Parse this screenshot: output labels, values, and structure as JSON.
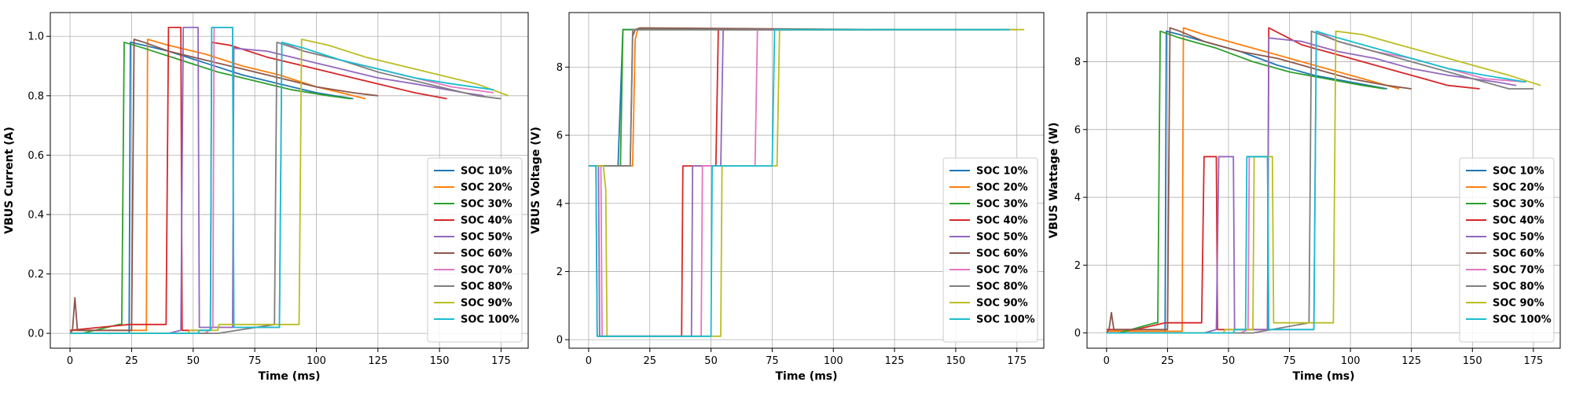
{
  "chart_data": [
    {
      "type": "line",
      "xlabel": "Time (ms)",
      "ylabel": "VBUS Current (A)",
      "xlim": [
        -8,
        186
      ],
      "ylim": [
        -0.05,
        1.08
      ],
      "xticks": [
        0,
        25,
        50,
        75,
        100,
        125,
        150,
        175
      ],
      "yticks": [
        0.0,
        0.2,
        0.4,
        0.6,
        0.8,
        1.0
      ],
      "ytick_labels": [
        "0.0",
        "0.2",
        "0.4",
        "0.6",
        "0.8",
        "1.0"
      ],
      "grid": true,
      "legend_position": "lower-right",
      "series": [
        {
          "name": "SOC 10%",
          "x": [
            0,
            24,
            24.5,
            30,
            40,
            55,
            70,
            85,
            100,
            115
          ],
          "y": [
            0.0,
            0.0,
            0.98,
            0.97,
            0.95,
            0.91,
            0.87,
            0.84,
            0.81,
            0.79
          ]
        },
        {
          "name": "SOC 20%",
          "x": [
            0,
            31,
            31.5,
            40,
            55,
            70,
            85,
            100,
            115,
            120
          ],
          "y": [
            0.01,
            0.01,
            0.99,
            0.97,
            0.94,
            0.9,
            0.87,
            0.83,
            0.8,
            0.79
          ]
        },
        {
          "name": "SOC 30%",
          "x": [
            0,
            5,
            20,
            21,
            22,
            30,
            45,
            60,
            75,
            90,
            105,
            114
          ],
          "y": [
            0.0,
            0.0,
            0.03,
            0.03,
            0.98,
            0.96,
            0.92,
            0.88,
            0.85,
            0.82,
            0.8,
            0.79
          ]
        },
        {
          "name": "SOC 40%",
          "x": [
            0,
            12,
            24,
            39,
            40,
            45,
            45.5,
            57,
            57.5,
            65,
            80,
            95,
            110,
            125,
            140,
            153
          ],
          "y": [
            0.01,
            0.02,
            0.03,
            0.03,
            1.03,
            1.03,
            0.01,
            0.01,
            0.98,
            0.97,
            0.93,
            0.9,
            0.87,
            0.84,
            0.81,
            0.79
          ]
        },
        {
          "name": "SOC 50%",
          "x": [
            0,
            40,
            45,
            46,
            52,
            52.5,
            66,
            66.5,
            80,
            95,
            110,
            125,
            140,
            160,
            168
          ],
          "y": [
            0.0,
            0.0,
            0.01,
            1.03,
            1.03,
            0.02,
            0.02,
            0.96,
            0.95,
            0.92,
            0.89,
            0.86,
            0.84,
            0.81,
            0.8
          ]
        },
        {
          "name": "SOC 60%",
          "x": [
            0,
            1,
            2,
            3,
            25,
            26,
            30,
            40,
            55,
            70,
            85,
            100,
            115,
            125
          ],
          "y": [
            0.0,
            0.01,
            0.12,
            0.01,
            0.01,
            0.99,
            0.98,
            0.95,
            0.92,
            0.89,
            0.86,
            0.83,
            0.81,
            0.8
          ]
        },
        {
          "name": "SOC 70%",
          "x": [
            0,
            55,
            58,
            58.5,
            66,
            66.5,
            85,
            86,
            95,
            110,
            125,
            140,
            155,
            172
          ],
          "y": [
            0.0,
            0.0,
            0.02,
            1.03,
            1.03,
            0.02,
            0.02,
            0.98,
            0.95,
            0.92,
            0.89,
            0.86,
            0.83,
            0.81
          ]
        },
        {
          "name": "SOC 80%",
          "x": [
            0,
            60,
            83,
            84,
            95,
            110,
            125,
            140,
            155,
            165,
            175
          ],
          "y": [
            0.0,
            0.0,
            0.03,
            0.98,
            0.95,
            0.92,
            0.88,
            0.85,
            0.82,
            0.8,
            0.79
          ]
        },
        {
          "name": "SOC 90%",
          "x": [
            0,
            48,
            48.5,
            60,
            60.5,
            68,
            68.5,
            93,
            94,
            105,
            120,
            135,
            150,
            165,
            178
          ],
          "y": [
            0.0,
            0.0,
            0.01,
            0.01,
            0.03,
            0.03,
            0.03,
            0.03,
            0.99,
            0.97,
            0.93,
            0.9,
            0.87,
            0.84,
            0.8
          ]
        },
        {
          "name": "SOC 100%",
          "x": [
            0,
            52,
            52.5,
            57,
            57.5,
            66,
            66.5,
            85,
            86,
            95,
            110,
            125,
            140,
            155,
            172
          ],
          "y": [
            0.0,
            0.0,
            0.01,
            0.01,
            1.03,
            1.03,
            0.02,
            0.02,
            0.98,
            0.96,
            0.92,
            0.89,
            0.86,
            0.84,
            0.82
          ]
        }
      ]
    },
    {
      "type": "line",
      "xlabel": "Time (ms)",
      "ylabel": "VBUS Voltage (V)",
      "xlim": [
        -8,
        186
      ],
      "ylim": [
        -0.25,
        9.6
      ],
      "xticks": [
        0,
        25,
        50,
        75,
        100,
        125,
        150,
        175
      ],
      "yticks": [
        0,
        2,
        4,
        6,
        8
      ],
      "ytick_labels": [
        "0",
        "2",
        "4",
        "6",
        "8"
      ],
      "grid": true,
      "legend_position": "lower-right",
      "series": [
        {
          "name": "SOC 10%",
          "x": [
            0,
            12,
            14,
            115
          ],
          "y": [
            5.1,
            5.1,
            9.1,
            9.1
          ]
        },
        {
          "name": "SOC 20%",
          "x": [
            0,
            18,
            19,
            20,
            120
          ],
          "y": [
            5.1,
            5.1,
            8.8,
            9.1,
            9.1
          ]
        },
        {
          "name": "SOC 30%",
          "x": [
            0,
            13,
            14,
            115
          ],
          "y": [
            5.1,
            5.1,
            9.1,
            9.1
          ]
        },
        {
          "name": "SOC 40%",
          "x": [
            0,
            3,
            3.5,
            38,
            38.5,
            52,
            53,
            153
          ],
          "y": [
            5.1,
            5.1,
            0.1,
            0.1,
            5.1,
            5.1,
            9.1,
            9.1
          ]
        },
        {
          "name": "SOC 50%",
          "x": [
            0,
            4,
            4.5,
            42,
            42.5,
            54,
            55,
            168
          ],
          "y": [
            5.1,
            5.1,
            0.1,
            0.1,
            5.1,
            5.1,
            9.1,
            9.1
          ]
        },
        {
          "name": "SOC 60%",
          "x": [
            0,
            17,
            18,
            19,
            21,
            125
          ],
          "y": [
            5.1,
            5.1,
            8.9,
            9.1,
            9.15,
            9.1
          ]
        },
        {
          "name": "SOC 70%",
          "x": [
            0,
            5,
            5.5,
            46,
            46.5,
            68,
            69,
            172
          ],
          "y": [
            5.1,
            5.1,
            0.1,
            0.1,
            5.1,
            5.1,
            9.1,
            9.1
          ]
        },
        {
          "name": "SOC 80%",
          "x": [
            0,
            17,
            18,
            175
          ],
          "y": [
            5.1,
            5.1,
            9.1,
            9.1
          ]
        },
        {
          "name": "SOC 90%",
          "x": [
            0,
            6,
            7,
            7.5,
            54,
            54.5,
            77,
            78,
            178
          ],
          "y": [
            5.1,
            5.1,
            4.4,
            0.1,
            0.1,
            5.1,
            5.1,
            9.1,
            9.1
          ]
        },
        {
          "name": "SOC 100%",
          "x": [
            0,
            3,
            3.5,
            50,
            50.5,
            75,
            76,
            172
          ],
          "y": [
            5.1,
            5.1,
            0.1,
            0.1,
            5.1,
            5.1,
            9.1,
            9.1
          ]
        }
      ]
    },
    {
      "type": "line",
      "xlabel": "Time (ms)",
      "ylabel": "VBUS Wattage (W)",
      "xlim": [
        -8,
        186
      ],
      "ylim": [
        -0.45,
        9.45
      ],
      "xticks": [
        0,
        25,
        50,
        75,
        100,
        125,
        150,
        175
      ],
      "yticks": [
        0,
        2,
        4,
        6,
        8
      ],
      "ytick_labels": [
        "0",
        "2",
        "4",
        "6",
        "8"
      ],
      "grid": true,
      "legend_position": "lower-right",
      "series": [
        {
          "name": "SOC 10%",
          "x": [
            0,
            24,
            24.5,
            30,
            40,
            55,
            70,
            85,
            100,
            115
          ],
          "y": [
            0.0,
            0.0,
            8.9,
            8.8,
            8.6,
            8.3,
            7.9,
            7.6,
            7.4,
            7.2
          ]
        },
        {
          "name": "SOC 20%",
          "x": [
            0,
            31,
            31.5,
            40,
            55,
            70,
            85,
            100,
            115,
            120
          ],
          "y": [
            0.05,
            0.05,
            9.0,
            8.8,
            8.5,
            8.2,
            7.9,
            7.6,
            7.3,
            7.2
          ]
        },
        {
          "name": "SOC 30%",
          "x": [
            0,
            5,
            20,
            21,
            22,
            30,
            45,
            60,
            75,
            90,
            105,
            114
          ],
          "y": [
            0.0,
            0.0,
            0.3,
            0.3,
            8.9,
            8.7,
            8.4,
            8.0,
            7.7,
            7.5,
            7.3,
            7.2
          ]
        },
        {
          "name": "SOC 40%",
          "x": [
            0,
            12,
            24,
            39,
            40,
            45,
            45.5,
            66,
            66.5,
            80,
            95,
            110,
            125,
            140,
            153
          ],
          "y": [
            0.1,
            0.1,
            0.3,
            0.3,
            5.2,
            5.2,
            0.1,
            0.1,
            9.0,
            8.5,
            8.2,
            7.9,
            7.6,
            7.3,
            7.2
          ]
        },
        {
          "name": "SOC 50%",
          "x": [
            0,
            40,
            45,
            46,
            52,
            52.5,
            66,
            66.5,
            80,
            95,
            110,
            125,
            140,
            160,
            168
          ],
          "y": [
            0.0,
            0.0,
            0.1,
            5.2,
            5.2,
            0.1,
            0.1,
            8.7,
            8.6,
            8.3,
            8.1,
            7.8,
            7.6,
            7.4,
            7.3
          ]
        },
        {
          "name": "SOC 60%",
          "x": [
            0,
            1,
            2,
            3,
            25,
            26,
            30,
            40,
            55,
            70,
            85,
            100,
            115,
            125
          ],
          "y": [
            0.0,
            0.1,
            0.6,
            0.1,
            0.1,
            9.0,
            8.9,
            8.6,
            8.3,
            8.1,
            7.8,
            7.5,
            7.3,
            7.2
          ]
        },
        {
          "name": "SOC 70%",
          "x": [
            0,
            55,
            58,
            58.5,
            66,
            66.5,
            85,
            86,
            95,
            110,
            125,
            140,
            155,
            172
          ],
          "y": [
            0.0,
            0.0,
            0.1,
            5.2,
            5.2,
            0.1,
            0.1,
            8.9,
            8.6,
            8.3,
            8.1,
            7.8,
            7.5,
            7.4
          ]
        },
        {
          "name": "SOC 80%",
          "x": [
            0,
            60,
            83,
            84,
            95,
            110,
            125,
            140,
            155,
            165,
            175
          ],
          "y": [
            0.0,
            0.0,
            0.3,
            8.9,
            8.6,
            8.3,
            8.0,
            7.7,
            7.4,
            7.2,
            7.2
          ]
        },
        {
          "name": "SOC 90%",
          "x": [
            0,
            48,
            48.5,
            60,
            60.5,
            68,
            68.5,
            93,
            94,
            105,
            120,
            135,
            150,
            165,
            178
          ],
          "y": [
            0.0,
            0.0,
            0.1,
            0.1,
            5.2,
            5.2,
            0.3,
            0.3,
            8.9,
            8.8,
            8.5,
            8.2,
            7.9,
            7.6,
            7.3
          ]
        },
        {
          "name": "SOC 100%",
          "x": [
            0,
            52,
            52.5,
            57,
            57.5,
            66,
            66.5,
            85,
            86,
            95,
            110,
            125,
            140,
            155,
            172
          ],
          "y": [
            0.0,
            0.0,
            0.1,
            0.1,
            5.2,
            5.2,
            0.1,
            0.1,
            8.9,
            8.7,
            8.4,
            8.1,
            7.8,
            7.6,
            7.4
          ]
        }
      ]
    }
  ],
  "colors": [
    "#1f77b4",
    "#ff7f0e",
    "#2ca02c",
    "#d62728",
    "#9467bd",
    "#8c564b",
    "#e377c2",
    "#7f7f7f",
    "#bcbd22",
    "#17becf"
  ]
}
